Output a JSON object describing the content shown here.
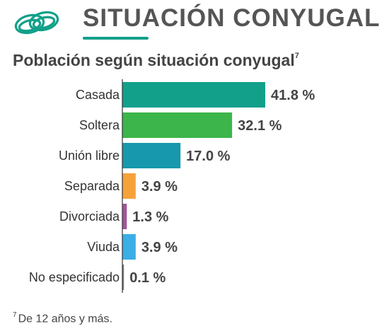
{
  "header": {
    "icon": "wedding-rings-icon",
    "title": "SITUACIÓN CONYUGAL",
    "accent_color": "#12a08a"
  },
  "subtitle": {
    "text": "Población según situación conyugal",
    "note_ref": "7"
  },
  "footnote": {
    "ref": "7",
    "text": "De 12 años y más."
  },
  "chart_data": {
    "type": "bar",
    "orientation": "horizontal",
    "title": "Población según situación conyugal",
    "categories": [
      "Casada",
      "Soltera",
      "Unión libre",
      "Separada",
      "Divorciada",
      "Viuda",
      "No especificado"
    ],
    "values": [
      41.8,
      32.1,
      17.0,
      3.9,
      1.3,
      3.9,
      0.1
    ],
    "value_labels": [
      "41.8 %",
      "32.1 %",
      "17.0 %",
      "3.9 %",
      "1.3 %",
      "3.9 %",
      "0.1 %"
    ],
    "colors": [
      "#12a08a",
      "#3cb54a",
      "#1798ac",
      "#f5a23a",
      "#a3549c",
      "#3aaee5",
      "#7a7a7a"
    ],
    "xlim": [
      0,
      42
    ],
    "unit": "%",
    "grid": false
  }
}
